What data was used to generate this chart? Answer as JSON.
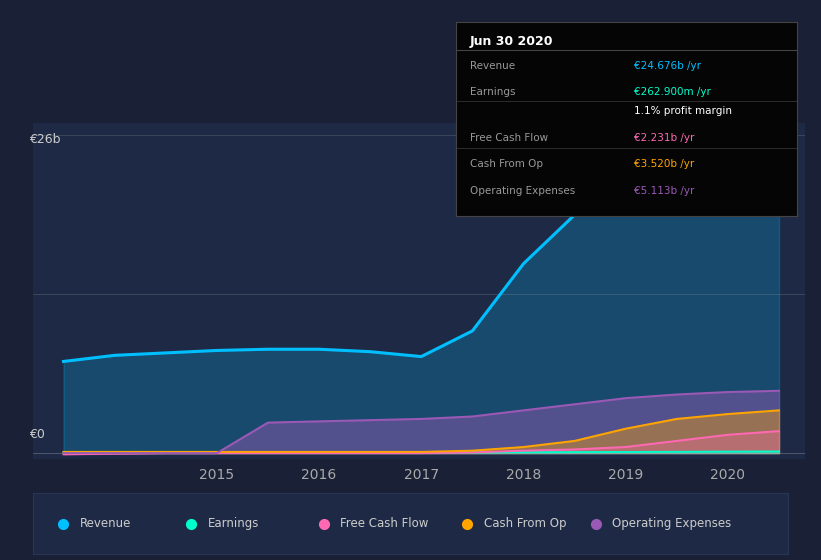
{
  "background_color": "#1a2035",
  "chart_area_color": "#1e2a45",
  "title": "Jun 30 2020",
  "y_label_top": "€26b",
  "y_label_bottom": "€0",
  "x_ticks": [
    "2015",
    "2016",
    "2017",
    "2018",
    "2019",
    "2020"
  ],
  "ylim": [
    -0.5,
    27
  ],
  "years": [
    2013.5,
    2014.0,
    2014.5,
    2015.0,
    2015.5,
    2016.0,
    2016.5,
    2017.0,
    2017.5,
    2018.0,
    2018.5,
    2019.0,
    2019.5,
    2020.0,
    2020.5
  ],
  "revenue": [
    7.5,
    8.0,
    8.2,
    8.4,
    8.5,
    8.5,
    8.3,
    7.9,
    10.0,
    15.5,
    19.5,
    21.5,
    22.5,
    24.5,
    24.676
  ],
  "earnings": [
    0.05,
    0.05,
    0.05,
    0.06,
    0.06,
    0.06,
    0.06,
    0.06,
    0.06,
    0.07,
    0.08,
    0.09,
    0.1,
    0.12,
    0.13
  ],
  "free_cash_flow": [
    -0.1,
    -0.05,
    0.0,
    0.0,
    0.0,
    0.0,
    0.0,
    0.0,
    0.05,
    0.2,
    0.3,
    0.5,
    1.0,
    1.5,
    1.8
  ],
  "cash_from_op": [
    0.1,
    0.1,
    0.1,
    0.1,
    0.1,
    0.1,
    0.1,
    0.1,
    0.2,
    0.5,
    1.0,
    2.0,
    2.8,
    3.2,
    3.5
  ],
  "operating_expenses": [
    0.0,
    0.0,
    0.0,
    0.0,
    2.5,
    2.6,
    2.7,
    2.8,
    3.0,
    3.5,
    4.0,
    4.5,
    4.8,
    5.0,
    5.1
  ],
  "revenue_color": "#00bfff",
  "earnings_color": "#00ffcc",
  "fcf_color": "#ff69b4",
  "cashop_color": "#ffa500",
  "opex_color": "#9b59b6",
  "legend_items": [
    {
      "label": "Revenue",
      "color": "#00bfff"
    },
    {
      "label": "Earnings",
      "color": "#00ffcc"
    },
    {
      "label": "Free Cash Flow",
      "color": "#ff69b4"
    },
    {
      "label": "Cash From Op",
      "color": "#ffa500"
    },
    {
      "label": "Operating Expenses",
      "color": "#9b59b6"
    }
  ]
}
